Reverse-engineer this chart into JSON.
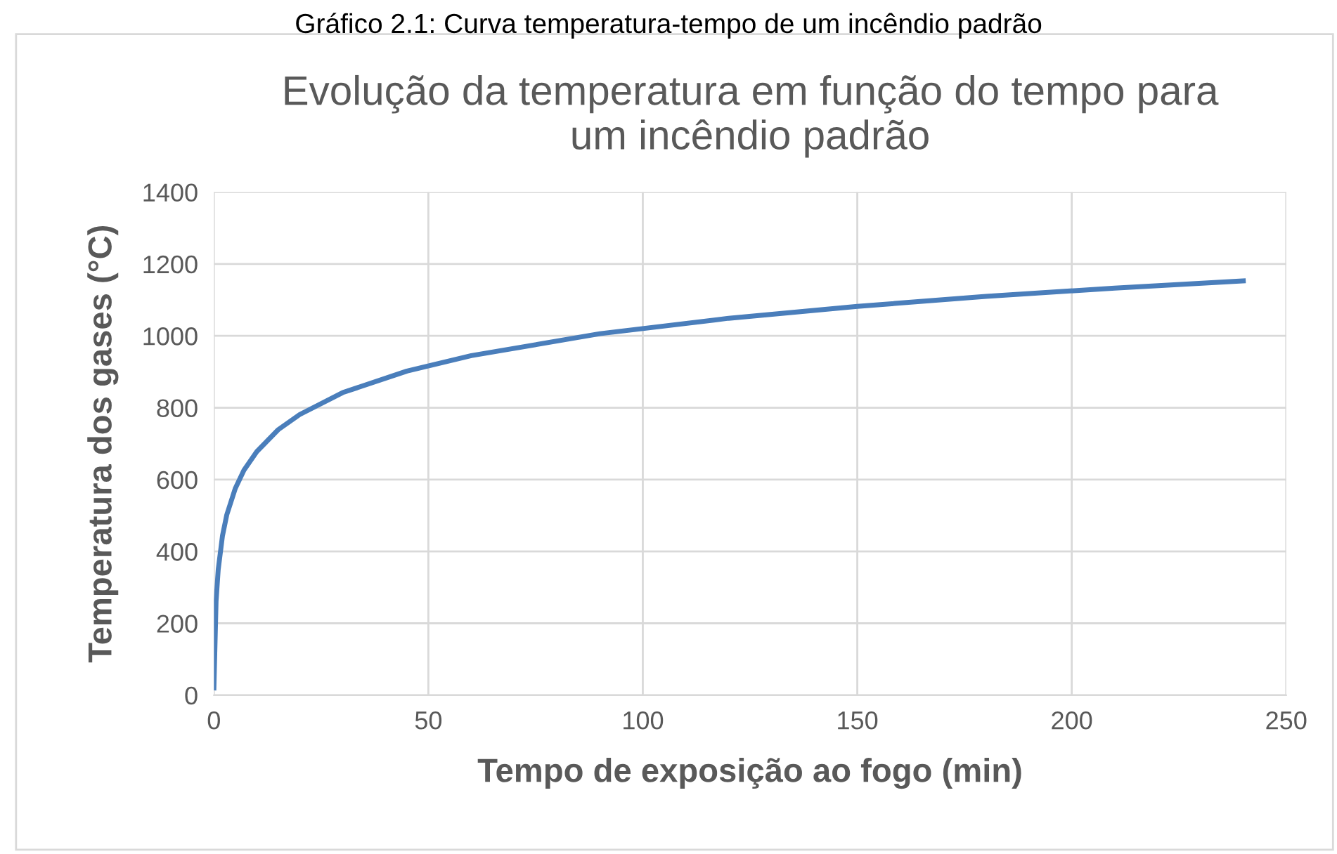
{
  "chart_data": {
    "type": "line",
    "title": "Evolução da temperatura em função do tempo para\num incêndio padrão",
    "xlabel": "Tempo de exposição ao fogo (min)",
    "ylabel": "Temperatura dos gases (°C)",
    "annotations": [
      "Gráfico 2.1: Curva temperatura-tempo de um incêndio padrão"
    ],
    "series": [
      {
        "color": "#4a7ebb",
        "x": [
          0,
          0.5,
          1,
          2,
          3,
          5,
          7,
          10,
          15,
          20,
          30,
          45,
          60,
          90,
          120,
          150,
          180,
          210,
          240
        ],
        "values": [
          20,
          261,
          349,
          444,
          502,
          576,
          626,
          678,
          739,
          781,
          842,
          902,
          945,
          1006,
          1049,
          1082,
          1110,
          1133,
          1153
        ]
      }
    ],
    "xlim": [
      0,
      250
    ],
    "xticks": [
      0,
      50,
      100,
      150,
      200,
      250
    ],
    "ylim": [
      0,
      1400
    ],
    "yticks": [
      0,
      200,
      400,
      600,
      800,
      1000,
      1200,
      1400
    ],
    "grid": true,
    "legend": false,
    "marker": "none",
    "line_style": "solid"
  }
}
